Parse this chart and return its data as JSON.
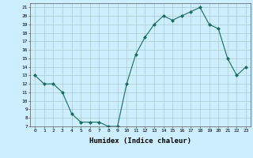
{
  "x": [
    0,
    1,
    2,
    3,
    4,
    5,
    6,
    7,
    8,
    9,
    10,
    11,
    12,
    13,
    14,
    15,
    16,
    17,
    18,
    19,
    20,
    21,
    22,
    23
  ],
  "y": [
    13,
    12,
    12,
    11,
    8.5,
    7.5,
    7.5,
    7.5,
    7,
    7,
    12,
    15.5,
    17.5,
    19,
    20,
    19.5,
    20,
    20.5,
    21,
    19,
    18.5,
    15,
    13,
    14
  ],
  "line_color": "#1a6b5a",
  "marker": "D",
  "marker_size": 2,
  "bg_color": "#cceeff",
  "grid_color": "#aacccc",
  "xlabel": "Humidex (Indice chaleur)",
  "xlim": [
    -0.5,
    23.5
  ],
  "ylim": [
    7,
    21.5
  ],
  "xtick_labels": [
    "0",
    "1",
    "2",
    "3",
    "4",
    "5",
    "6",
    "7",
    "8",
    "9",
    "10",
    "11",
    "12",
    "13",
    "14",
    "15",
    "16",
    "17",
    "18",
    "19",
    "20",
    "21",
    "22",
    "23"
  ],
  "ytick_values": [
    7,
    8,
    9,
    10,
    11,
    12,
    13,
    14,
    15,
    16,
    17,
    18,
    19,
    20,
    21
  ]
}
